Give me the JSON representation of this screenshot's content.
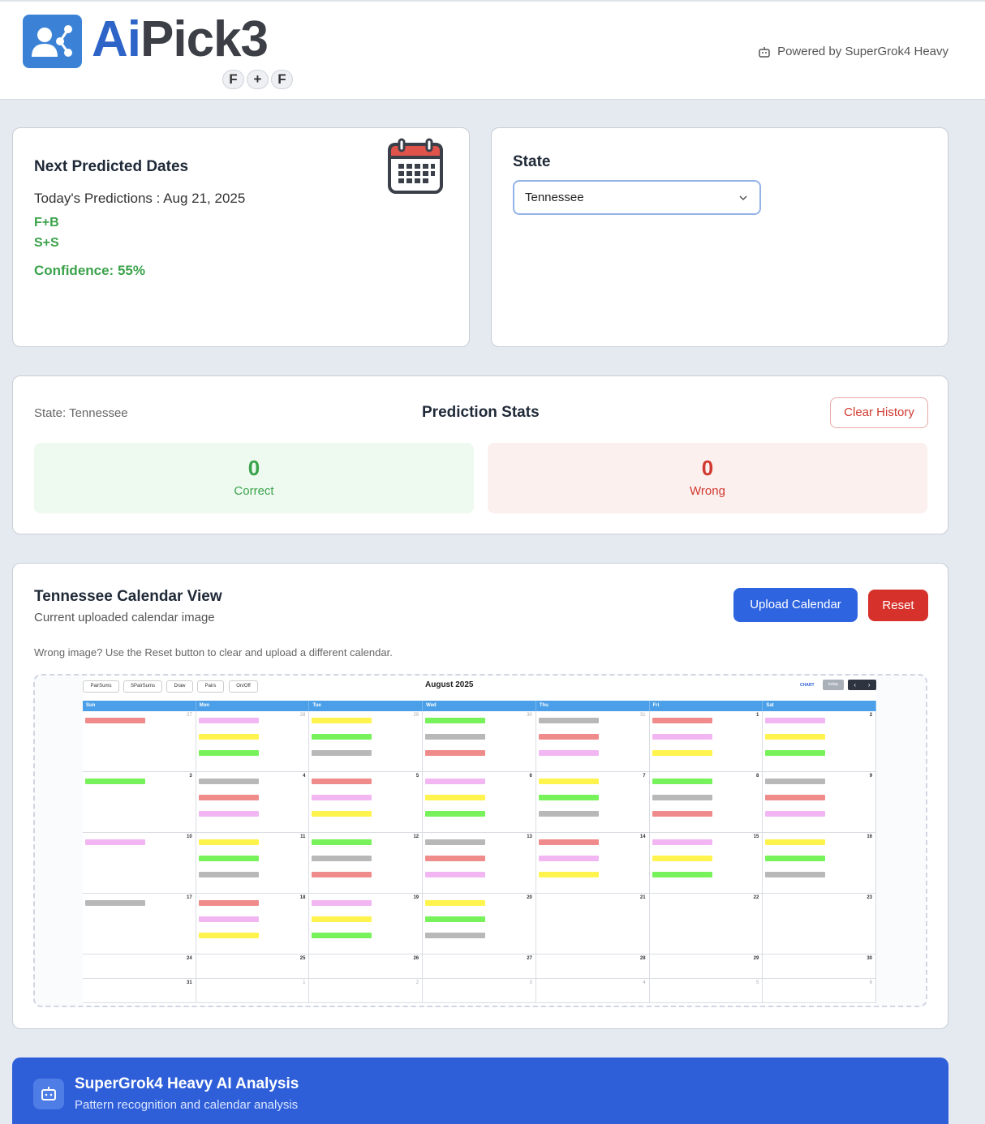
{
  "header": {
    "logo_text_a": "Ai",
    "logo_text_b": "Pick",
    "logo_text_c": "3",
    "badges": [
      "F",
      "+",
      "F"
    ],
    "powered": "Powered by SuperGrok4 Heavy"
  },
  "prediction": {
    "title": "Next Predicted Dates",
    "today_label": "Today's Predictions : Aug 21, 2025",
    "picks": [
      "F+B",
      "S+S"
    ],
    "confidence": "Confidence: 55%"
  },
  "state_card": {
    "label": "State",
    "selected": "Tennessee"
  },
  "stats": {
    "state_label": "State: Tennessee",
    "title": "Prediction Stats",
    "clear": "Clear History",
    "correct_value": "0",
    "correct_label": "Correct",
    "wrong_value": "0",
    "wrong_label": "Wrong"
  },
  "calendar": {
    "title": "Tennessee Calendar View",
    "subtitle": "Current uploaded calendar image",
    "upload": "Upload Calendar",
    "reset": "Reset",
    "hint": "Wrong image? Use the Reset button to clear and upload a different calendar.",
    "image": {
      "month": "August 2025",
      "tools": [
        "PairSums",
        "SPairSums",
        "Draw",
        "Pairs",
        "On/Off"
      ],
      "chart": "CHART",
      "today": "today",
      "days": [
        "Sun",
        "Mon",
        "Tue",
        "Wed",
        "Thu",
        "Fri",
        "Sat"
      ],
      "weeks": [
        [
          "27",
          "28",
          "29",
          "30",
          "31",
          "1",
          "2"
        ],
        [
          "3",
          "4",
          "5",
          "6",
          "7",
          "8",
          "9"
        ],
        [
          "10",
          "11",
          "12",
          "13",
          "14",
          "15",
          "16"
        ],
        [
          "17",
          "18",
          "19",
          "20",
          "21",
          "22",
          "23"
        ],
        [
          "24",
          "25",
          "26",
          "27",
          "28",
          "29",
          "30"
        ],
        [
          "31",
          "1",
          "2",
          "3",
          "4",
          "5",
          "6"
        ]
      ]
    }
  },
  "ai": {
    "title": "SuperGrok4 Heavy AI Analysis",
    "subtitle": "Pattern recognition and calendar analysis"
  }
}
